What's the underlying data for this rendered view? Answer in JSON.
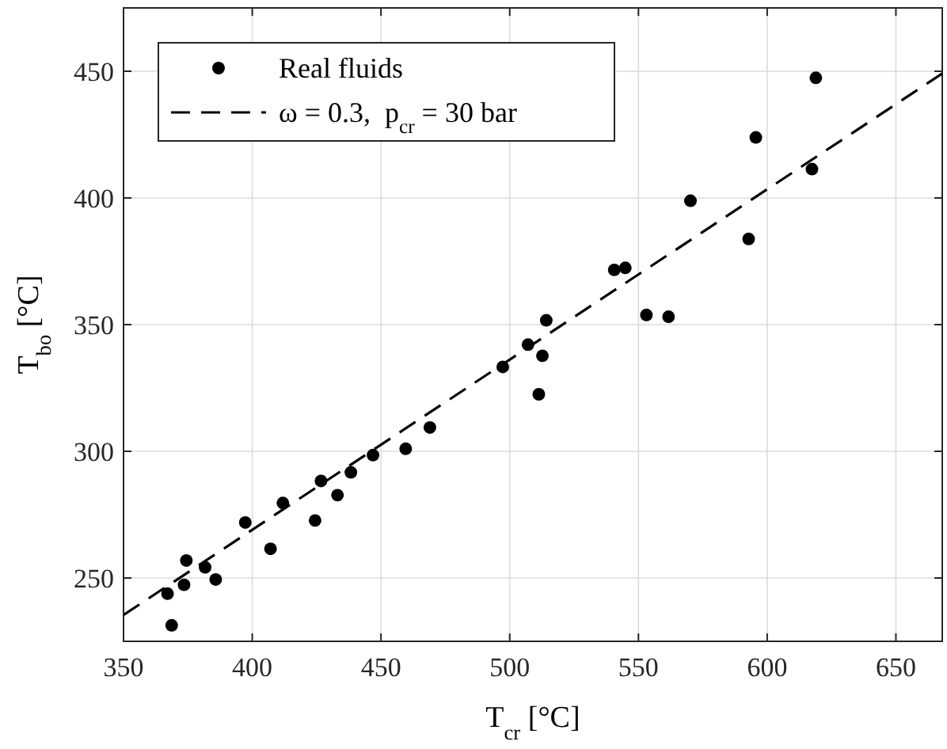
{
  "chart_data": {
    "type": "scatter",
    "xlabel": "T$_{cr}$ [°C]",
    "ylabel": "T$_{bo}$ [°C]",
    "xlim": [
      350,
      668
    ],
    "ylim": [
      225,
      475
    ],
    "xticks": [
      350,
      400,
      450,
      500,
      550,
      600,
      650
    ],
    "yticks": [
      250,
      300,
      350,
      400,
      450
    ],
    "grid": true,
    "legend": "top left",
    "series": [
      {
        "name": "Real fluids",
        "color": "#000000",
        "marker": "circle",
        "x": [
          367.1,
          368.7,
          373.5,
          374.4,
          381.7,
          385.8,
          397.3,
          407.1,
          411.9,
          424.4,
          426.7,
          433.1,
          438.3,
          446.9,
          459.6,
          469.0,
          497.3,
          507.1,
          511.3,
          512.7,
          514.2,
          553.1,
          561.7,
          540.6,
          544.9,
          570.2,
          592.8,
          595.6,
          617.4,
          618.9
        ],
        "values": [
          243.8,
          231.3,
          247.3,
          256.9,
          254.2,
          249.4,
          271.9,
          261.5,
          279.6,
          272.7,
          288.3,
          282.7,
          291.7,
          298.5,
          301.0,
          309.4,
          333.3,
          342.1,
          322.5,
          337.7,
          351.7,
          353.8,
          353.1,
          371.6,
          372.4,
          398.9,
          383.8,
          423.9,
          411.4,
          447.4
        ]
      },
      {
        "name": "ω = 0.3,  p$_{cr}$ = 30 bar",
        "type": "line",
        "color": "#000000",
        "marker": "none",
        "line_style": "dashed",
        "x": [
          350,
          668
        ],
        "values": [
          235.4,
          449.1
        ]
      }
    ]
  }
}
